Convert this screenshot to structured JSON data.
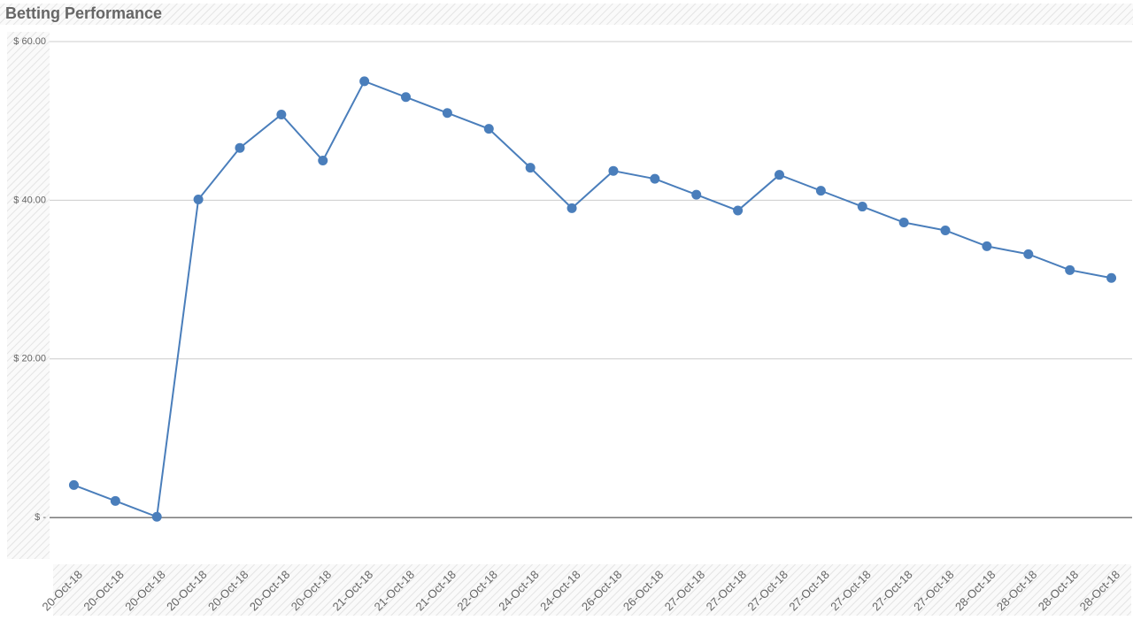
{
  "chart_data": {
    "type": "line",
    "title": "Betting Performance",
    "categories": [
      "20-Oct-18",
      "20-Oct-18",
      "20-Oct-18",
      "20-Oct-18",
      "20-Oct-18",
      "20-Oct-18",
      "20-Oct-18",
      "21-Oct-18",
      "21-Oct-18",
      "21-Oct-18",
      "22-Oct-18",
      "24-Oct-18",
      "24-Oct-18",
      "26-Oct-18",
      "26-Oct-18",
      "27-Oct-18",
      "27-Oct-18",
      "27-Oct-18",
      "27-Oct-18",
      "27-Oct-18",
      "27-Oct-18",
      "27-Oct-18",
      "28-Oct-18",
      "28-Oct-18",
      "28-Oct-18",
      "28-Oct-18"
    ],
    "series": [
      {
        "name": "Betting Performance",
        "color": "#4a7ebb",
        "values": [
          4.1,
          2.1,
          0.1,
          40.1,
          46.6,
          50.8,
          45.0,
          55.0,
          53.0,
          51.0,
          49.0,
          44.1,
          39.0,
          43.7,
          42.7,
          40.7,
          38.7,
          43.2,
          41.2,
          39.2,
          37.2,
          36.2,
          34.2,
          33.2,
          31.2,
          30.2
        ]
      }
    ],
    "ylim": [
      -5,
      60
    ],
    "yticks": [
      {
        "value": 0,
        "label": "$ -"
      },
      {
        "value": 20,
        "label": "$ 20.00"
      },
      {
        "value": 40,
        "label": "$ 40.00"
      },
      {
        "value": 60,
        "label": "$ 60.00"
      }
    ],
    "grid": true
  }
}
